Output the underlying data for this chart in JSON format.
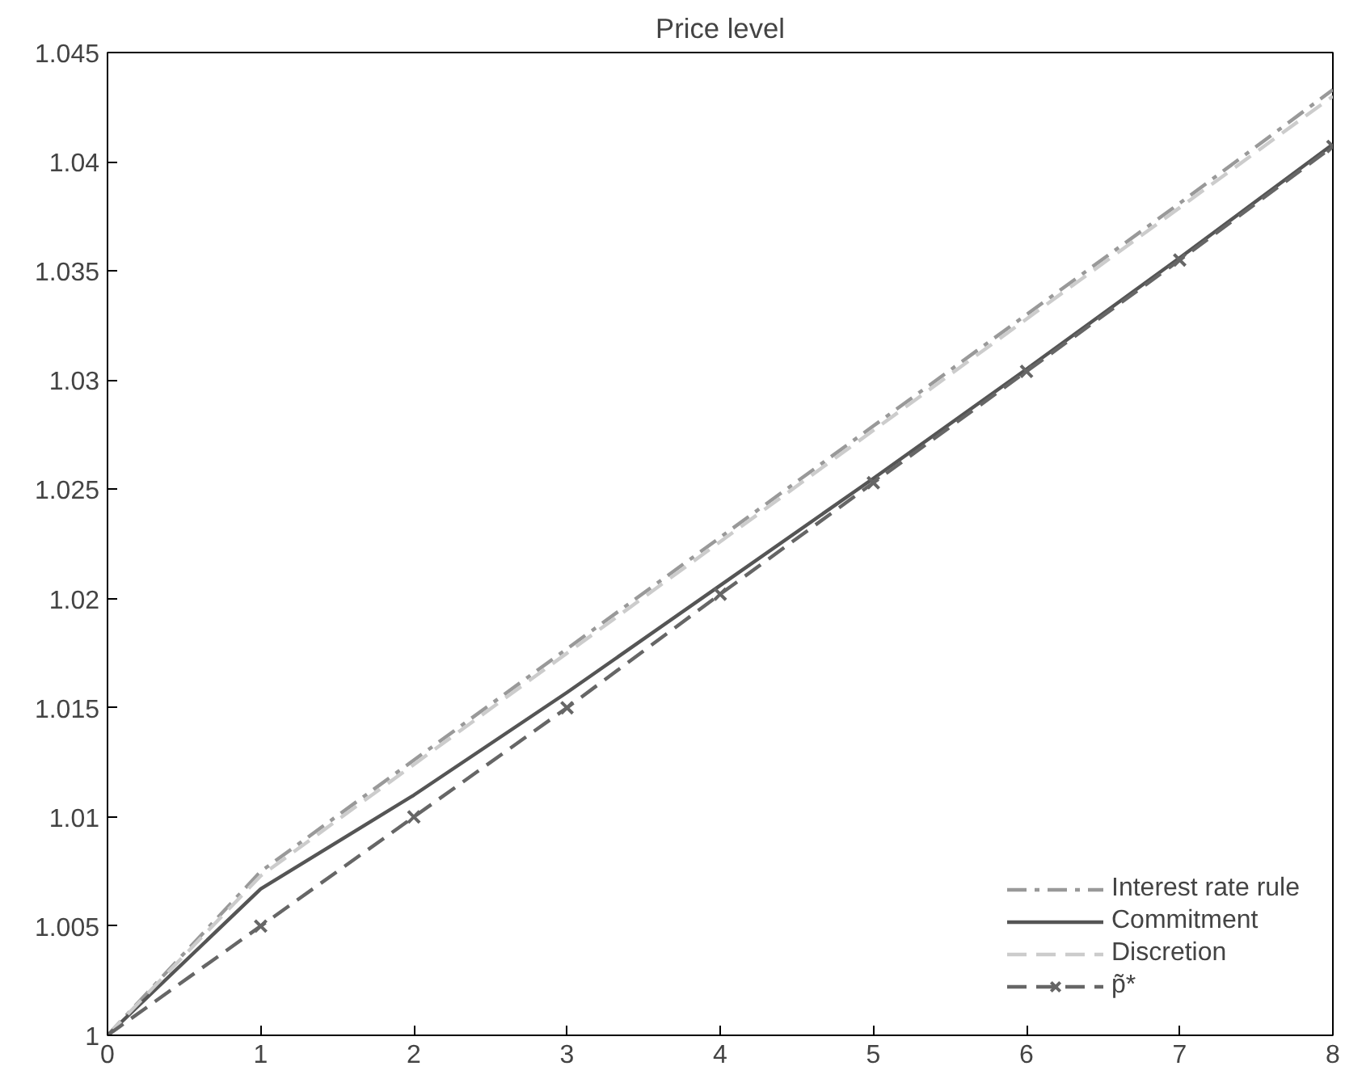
{
  "chart_data": {
    "type": "line",
    "title": "Price level",
    "x": [
      0,
      1,
      2,
      3,
      4,
      5,
      6,
      7,
      8
    ],
    "series": [
      {
        "name": "Interest rate rule",
        "color": "#999999",
        "line_style": "dashdot",
        "marker": "none",
        "values": [
          1,
          1.0075,
          1.0126,
          1.0177,
          1.0228,
          1.0279,
          1.033,
          1.0381,
          1.0433
        ]
      },
      {
        "name": "Commitment",
        "color": "#555555",
        "line_style": "solid",
        "marker": "none",
        "values": [
          1,
          1.0067,
          1.011,
          1.0157,
          1.0206,
          1.0255,
          1.0305,
          1.0356,
          1.0408
        ]
      },
      {
        "name": "Discretion",
        "color": "#cccccc",
        "line_style": "dashed",
        "marker": "none",
        "values": [
          1,
          1.0073,
          1.0124,
          1.0175,
          1.0226,
          1.0277,
          1.0328,
          1.0379,
          1.043
        ]
      },
      {
        "name": "p̃*",
        "color": "#666666",
        "line_style": "dashed",
        "marker": "cross",
        "values": [
          1,
          1.005,
          1.01,
          1.015,
          1.0202,
          1.0253,
          1.0304,
          1.0355,
          1.0407
        ]
      }
    ],
    "xlim": [
      0,
      8
    ],
    "xticks": [
      0,
      1,
      2,
      3,
      4,
      5,
      6,
      7,
      8
    ],
    "ylim": [
      1,
      1.045
    ],
    "yticks": [
      1,
      1.005,
      1.01,
      1.015,
      1.02,
      1.025,
      1.03,
      1.035,
      1.04,
      1.045
    ],
    "grid": false,
    "legend": "bottom right"
  }
}
